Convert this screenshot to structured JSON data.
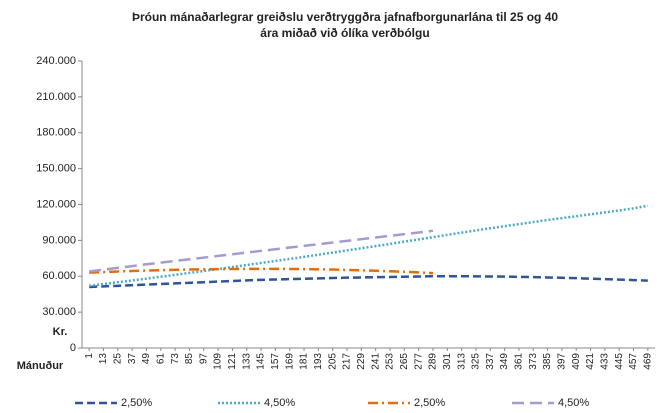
{
  "chart_data": {
    "type": "line",
    "title": [
      "Þróun mánaðarlegrar greiðslu verðtryggðra jafnafborgunarlána til 25 og 40",
      "ára miðað við ólíka verðbólgu"
    ],
    "y_label": "Kr.",
    "x_label": "Mánuður",
    "x": [
      1,
      13,
      25,
      37,
      49,
      61,
      73,
      85,
      97,
      109,
      121,
      133,
      145,
      157,
      169,
      181,
      193,
      205,
      217,
      229,
      241,
      253,
      265,
      277,
      289,
      301,
      313,
      325,
      337,
      349,
      361,
      373,
      385,
      397,
      409,
      421,
      433,
      445,
      457,
      469
    ],
    "xlim": [
      -5,
      475
    ],
    "ylim": [
      0,
      240000
    ],
    "yticks": [
      0,
      {
        "value": 30000,
        "label": "30.000"
      },
      {
        "value": 60000,
        "label": "60.000"
      },
      {
        "value": 90000,
        "label": "90.000"
      },
      {
        "value": 120000,
        "label": "120.000"
      },
      {
        "value": 150000,
        "label": "150.000"
      },
      {
        "value": 180000,
        "label": "180.000"
      },
      {
        "value": 210000,
        "label": "210.000"
      },
      {
        "value": 240000,
        "label": "240.000"
      }
    ],
    "legend": "bottom",
    "series": [
      {
        "name": "2,50%",
        "color": "#2e5597",
        "dash": "dashed",
        "values": [
          51000,
          51500,
          52000,
          52500,
          53000,
          53500,
          54000,
          54500,
          55000,
          55500,
          56000,
          56500,
          57000,
          57300,
          57600,
          57900,
          58200,
          58500,
          58800,
          59000,
          59200,
          59400,
          59600,
          59800,
          60000,
          60000,
          60000,
          59900,
          59800,
          59700,
          59500,
          59300,
          59000,
          58700,
          58400,
          58000,
          57600,
          57200,
          56800,
          56300
        ]
      },
      {
        "name": "4,50%",
        "color": "#4bacc6",
        "dash": "dotted",
        "values": [
          52000,
          53500,
          55000,
          56500,
          58000,
          59600,
          61200,
          62800,
          64400,
          66000,
          67700,
          69400,
          71100,
          72800,
          74500,
          76200,
          78000,
          79800,
          81600,
          83400,
          85200,
          87000,
          88900,
          90800,
          92700,
          94600,
          96500,
          98300,
          100100,
          101900,
          103600,
          105300,
          107000,
          108600,
          110200,
          111800,
          113400,
          115000,
          116800,
          119000
        ]
      },
      {
        "name": "2,50%",
        "color": "#e46c0a",
        "dash": "dashdot",
        "values": [
          63000,
          63500,
          64000,
          64400,
          64800,
          65100,
          65400,
          65600,
          65800,
          66000,
          66100,
          66200,
          66200,
          66200,
          66100,
          66000,
          65800,
          65600,
          65300,
          65000,
          64600,
          64200,
          63700,
          63200,
          62600,
          null,
          null,
          null,
          null,
          null,
          null,
          null,
          null,
          null,
          null,
          null,
          null,
          null,
          null,
          null
        ]
      },
      {
        "name": "4,50%",
        "color": "#a59bcf",
        "dash": "longdash",
        "values": [
          64000,
          65500,
          67000,
          68500,
          70000,
          71400,
          72800,
          74200,
          75600,
          77000,
          78400,
          79800,
          81200,
          82600,
          84000,
          85400,
          86800,
          88200,
          89600,
          91000,
          92400,
          93800,
          95200,
          96600,
          98000,
          null,
          null,
          null,
          null,
          null,
          null,
          null,
          null,
          null,
          null,
          null,
          null,
          null,
          null,
          null
        ]
      }
    ]
  }
}
